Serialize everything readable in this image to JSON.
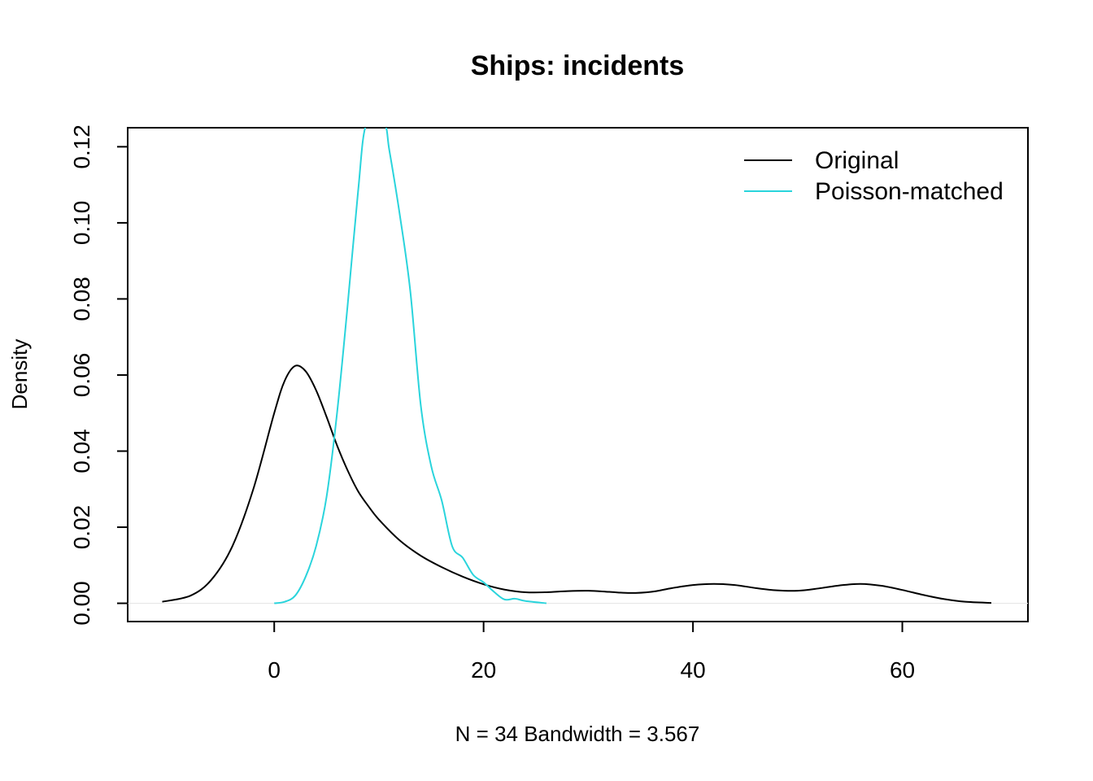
{
  "chart_data": {
    "type": "line",
    "title": "Ships: incidents",
    "xlabel": "N = 34   Bandwidth = 3.567",
    "ylabel": "Density",
    "xlim": [
      -14,
      72
    ],
    "ylim": [
      -0.0048,
      0.125
    ],
    "x_ticks": [
      0,
      20,
      40,
      60
    ],
    "y_ticks": [
      0.0,
      0.02,
      0.04,
      0.06,
      0.08,
      0.1,
      0.12
    ],
    "y_tick_labels": [
      "0.00",
      "0.02",
      "0.04",
      "0.06",
      "0.08",
      "0.10",
      "0.12"
    ],
    "grid": false,
    "zero_baseline": true,
    "legend": {
      "position": "top-right",
      "border": false
    },
    "series": [
      {
        "name": "Original",
        "color": "#000000",
        "points": [
          [
            -10.7,
            0.0004
          ],
          [
            -8,
            0.002
          ],
          [
            -6,
            0.0062
          ],
          [
            -4,
            0.015
          ],
          [
            -2,
            0.03
          ],
          [
            0,
            0.05
          ],
          [
            1,
            0.0585
          ],
          [
            2,
            0.0624
          ],
          [
            3,
            0.061
          ],
          [
            4,
            0.056
          ],
          [
            5,
            0.049
          ],
          [
            6,
            0.0415
          ],
          [
            7,
            0.035
          ],
          [
            8,
            0.0295
          ],
          [
            9,
            0.0255
          ],
          [
            10,
            0.022
          ],
          [
            12,
            0.0165
          ],
          [
            14,
            0.0125
          ],
          [
            16,
            0.0095
          ],
          [
            18,
            0.007
          ],
          [
            20,
            0.005
          ],
          [
            22,
            0.0036
          ],
          [
            24,
            0.0029
          ],
          [
            26,
            0.0029
          ],
          [
            28,
            0.0032
          ],
          [
            30,
            0.0033
          ],
          [
            32,
            0.003
          ],
          [
            34,
            0.0027
          ],
          [
            36,
            0.003
          ],
          [
            38,
            0.004
          ],
          [
            40,
            0.0048
          ],
          [
            42,
            0.0051
          ],
          [
            44,
            0.0048
          ],
          [
            46,
            0.004
          ],
          [
            48,
            0.0034
          ],
          [
            50,
            0.0033
          ],
          [
            52,
            0.0039
          ],
          [
            54,
            0.0047
          ],
          [
            56,
            0.0051
          ],
          [
            58,
            0.0046
          ],
          [
            60,
            0.0035
          ],
          [
            62,
            0.0022
          ],
          [
            64,
            0.0011
          ],
          [
            66,
            0.0004
          ],
          [
            68.5,
            0.0001
          ]
        ]
      },
      {
        "name": "Poisson-matched",
        "color": "#2ad4dc",
        "points": [
          [
            0,
            0.0
          ],
          [
            1,
            0.0004
          ],
          [
            2,
            0.002
          ],
          [
            3,
            0.007
          ],
          [
            4,
            0.015
          ],
          [
            5,
            0.028
          ],
          [
            6,
            0.05
          ],
          [
            7,
            0.078
          ],
          [
            8,
            0.108
          ],
          [
            8.8,
            0.126
          ],
          [
            10.5,
            0.126
          ],
          [
            11,
            0.119
          ],
          [
            12,
            0.102
          ],
          [
            13,
            0.082
          ],
          [
            14,
            0.052
          ],
          [
            15,
            0.036
          ],
          [
            16,
            0.027
          ],
          [
            17,
            0.015
          ],
          [
            18,
            0.012
          ],
          [
            19,
            0.0075
          ],
          [
            20,
            0.0055
          ],
          [
            21,
            0.003
          ],
          [
            22,
            0.001
          ],
          [
            23,
            0.0012
          ],
          [
            24,
            0.0006
          ],
          [
            26,
            0.0
          ]
        ]
      }
    ]
  }
}
